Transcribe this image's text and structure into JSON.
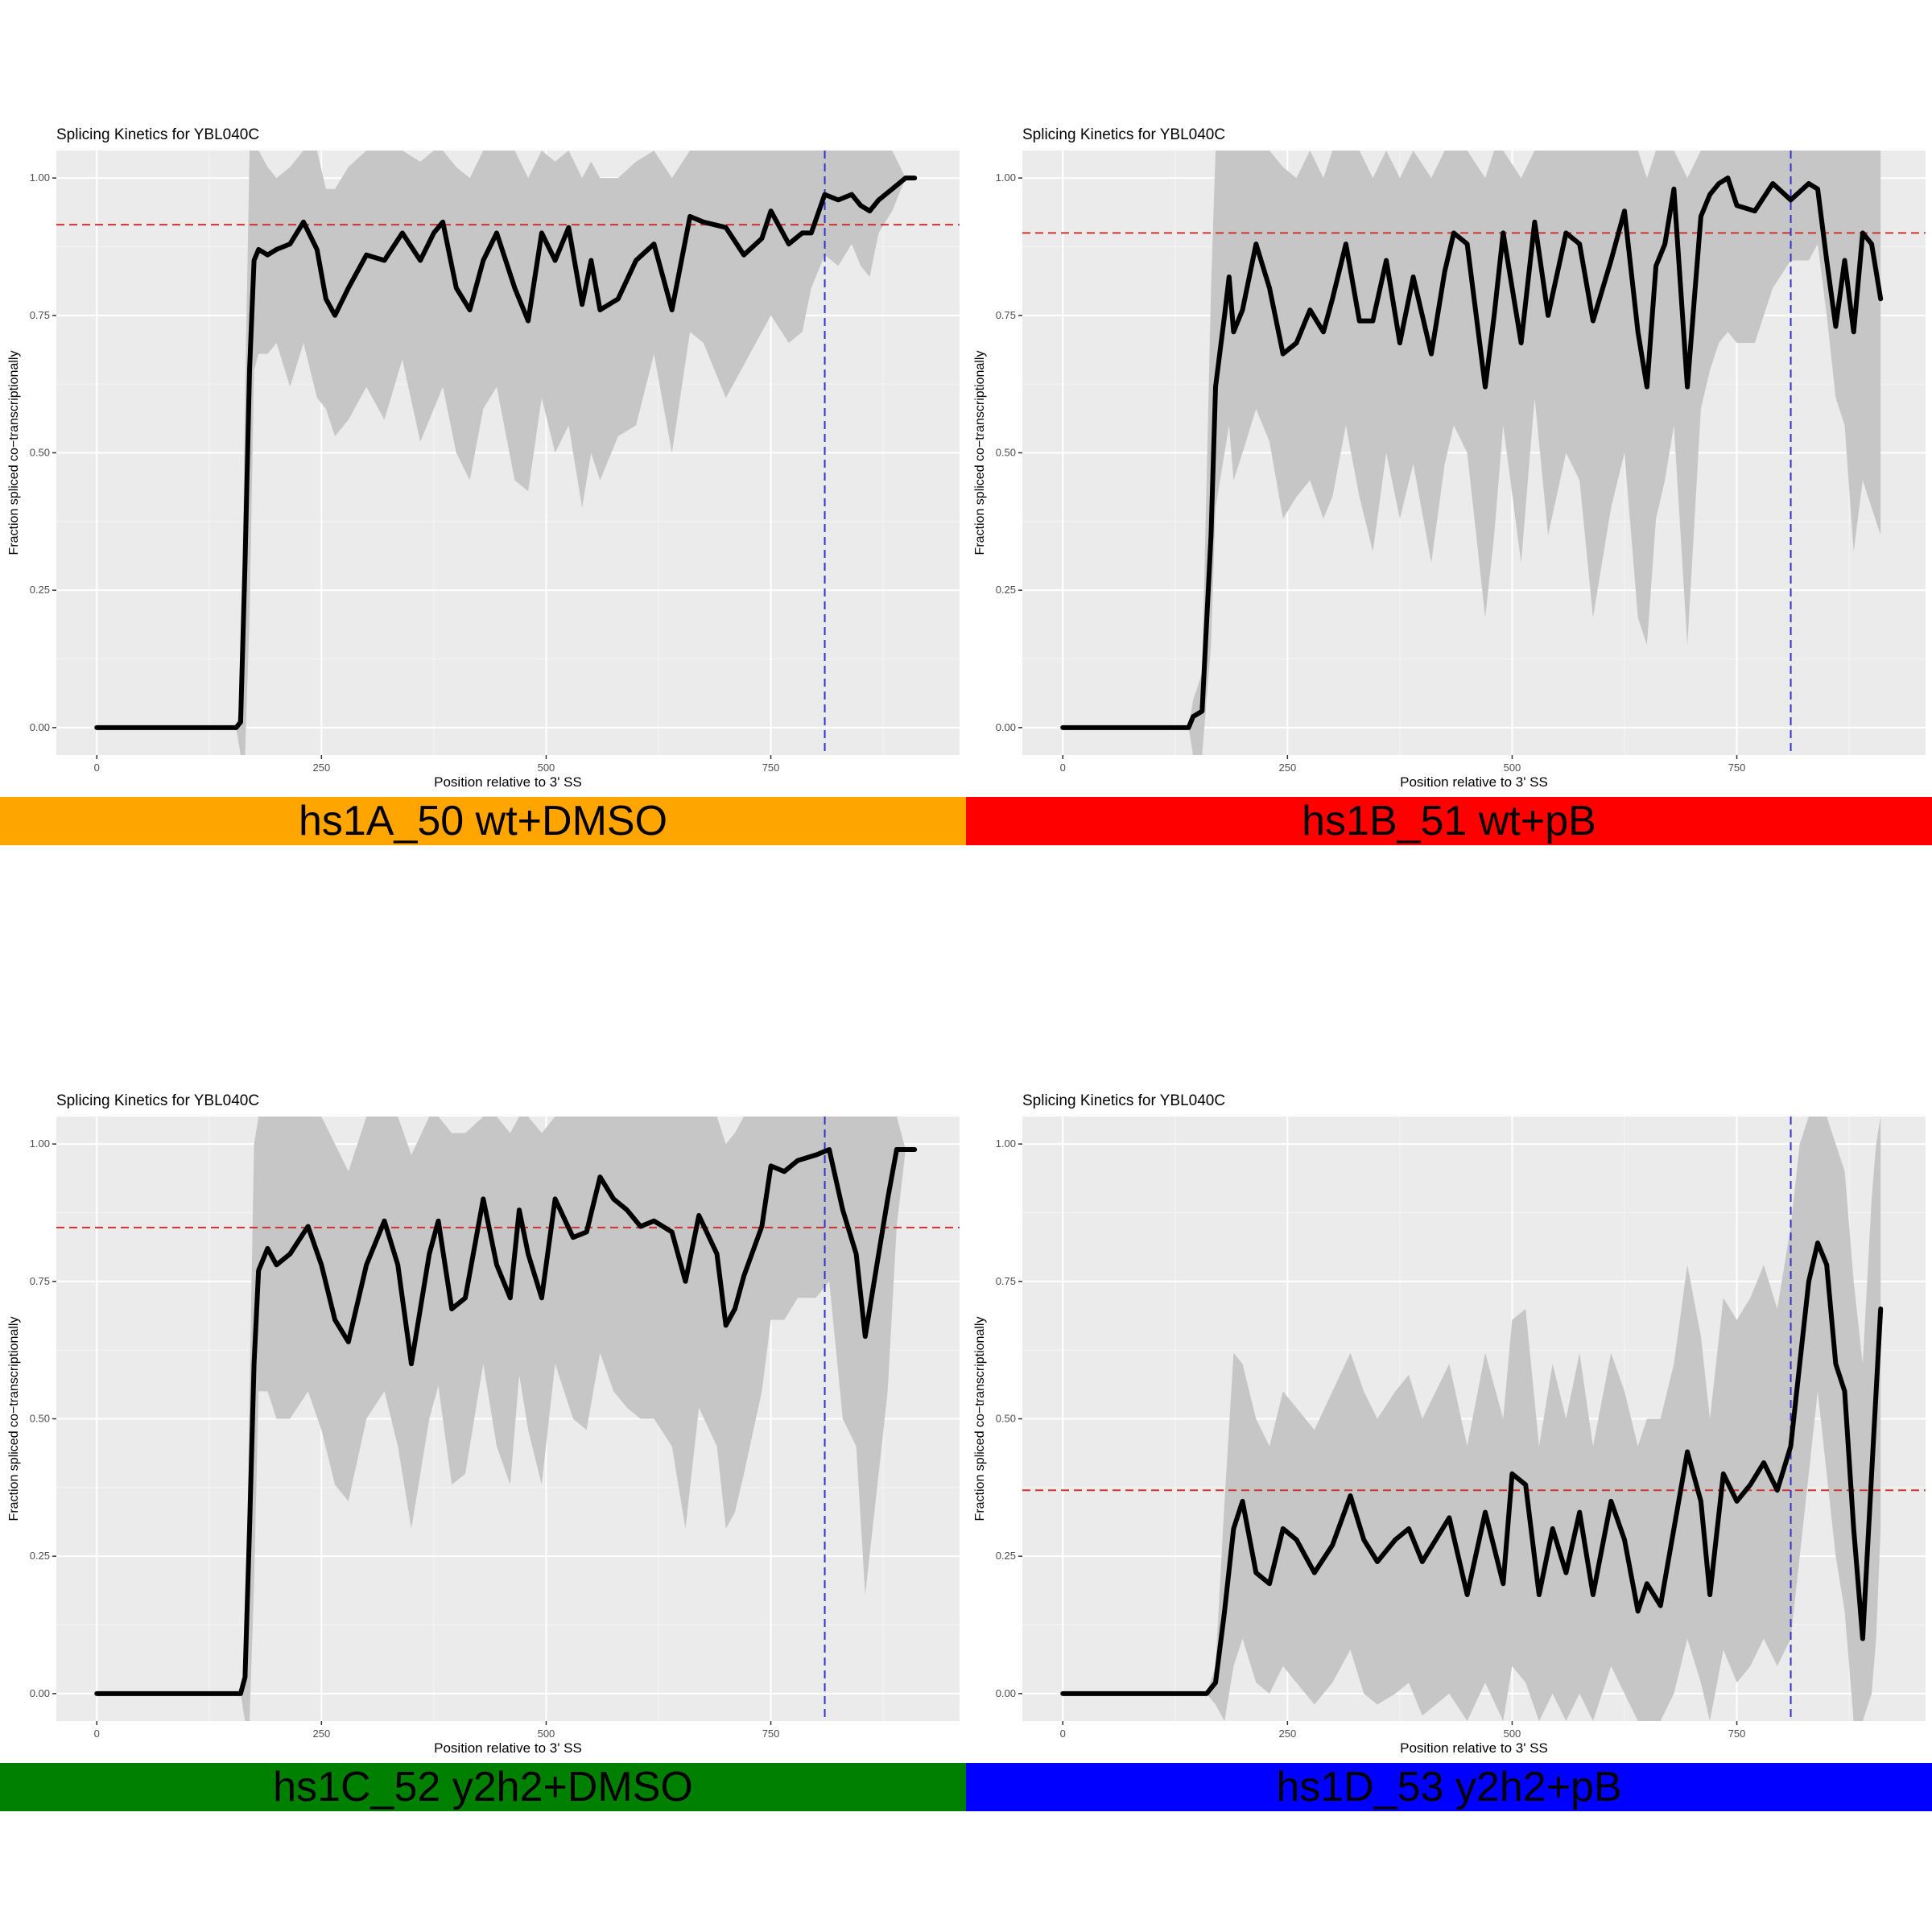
{
  "chart_data": [
    {
      "type": "line",
      "title": "Splicing Kinetics for YBL040C",
      "xlabel": "Position relative to 3' SS",
      "ylabel": "Fraction spliced co−transcriptionally",
      "xlim": [
        -45,
        960
      ],
      "ylim": [
        -0.05,
        1.05
      ],
      "x_ticks": [
        "0",
        "250",
        "500",
        "750"
      ],
      "y_ticks": [
        "0.00",
        "0.25",
        "0.50",
        "0.75",
        "1.00"
      ],
      "grid": true,
      "banner": {
        "label": "hs1A_50 wt+DMSO",
        "color": "#FFA500"
      },
      "hline_y": 0.915,
      "hline_color": "#CD3333",
      "vline_x": 810,
      "vline_color": "#3333CC",
      "line_color": "#000000",
      "band_color": "#C6C6C6",
      "x": [
        0,
        100,
        155,
        160,
        165,
        170,
        175,
        180,
        190,
        200,
        215,
        230,
        245,
        255,
        265,
        280,
        300,
        320,
        340,
        360,
        375,
        385,
        400,
        415,
        430,
        445,
        465,
        480,
        495,
        510,
        525,
        540,
        550,
        560,
        580,
        600,
        620,
        640,
        660,
        675,
        700,
        720,
        740,
        750,
        770,
        785,
        795,
        810,
        825,
        840,
        850,
        860,
        870,
        885,
        900,
        910
      ],
      "y": [
        0,
        0,
        0,
        0.01,
        0.3,
        0.65,
        0.85,
        0.87,
        0.86,
        0.87,
        0.88,
        0.92,
        0.87,
        0.78,
        0.75,
        0.8,
        0.86,
        0.85,
        0.9,
        0.85,
        0.9,
        0.92,
        0.8,
        0.76,
        0.85,
        0.9,
        0.8,
        0.74,
        0.9,
        0.85,
        0.91,
        0.77,
        0.85,
        0.76,
        0.78,
        0.85,
        0.88,
        0.76,
        0.93,
        0.92,
        0.91,
        0.86,
        0.89,
        0.94,
        0.88,
        0.9,
        0.9,
        0.97,
        0.96,
        0.97,
        0.95,
        0.94,
        0.96,
        0.98,
        1.0,
        1.0
      ],
      "lower": [
        0,
        0,
        0,
        -0.05,
        -0.05,
        0.2,
        0.65,
        0.68,
        0.68,
        0.7,
        0.62,
        0.7,
        0.6,
        0.58,
        0.53,
        0.56,
        0.62,
        0.56,
        0.67,
        0.52,
        0.58,
        0.62,
        0.5,
        0.45,
        0.58,
        0.62,
        0.45,
        0.43,
        0.6,
        0.5,
        0.55,
        0.4,
        0.5,
        0.45,
        0.53,
        0.55,
        0.68,
        0.5,
        0.72,
        0.7,
        0.6,
        0.66,
        0.72,
        0.75,
        0.7,
        0.72,
        0.8,
        0.86,
        0.84,
        0.88,
        0.84,
        0.82,
        0.9,
        0.94,
        1.0,
        1.0
      ],
      "upper": [
        0,
        0,
        0,
        0.05,
        0.6,
        1.05,
        1.05,
        1.05,
        1.02,
        1.0,
        1.02,
        1.05,
        1.05,
        0.98,
        0.98,
        1.02,
        1.05,
        1.05,
        1.05,
        1.03,
        1.05,
        1.05,
        1.02,
        1.0,
        1.05,
        1.05,
        1.05,
        1.0,
        1.05,
        1.03,
        1.05,
        1.0,
        1.03,
        1.0,
        1.0,
        1.03,
        1.05,
        1.0,
        1.05,
        1.05,
        1.05,
        1.05,
        1.05,
        1.05,
        1.05,
        1.05,
        1.05,
        1.05,
        1.05,
        1.05,
        1.05,
        1.05,
        1.05,
        1.05,
        1.0,
        1.0
      ]
    },
    {
      "type": "line",
      "title": "Splicing Kinetics for YBL040C",
      "xlabel": "Position relative to 3' SS",
      "ylabel": "Fraction spliced co−transcriptionally",
      "xlim": [
        -45,
        960
      ],
      "ylim": [
        -0.05,
        1.05
      ],
      "x_ticks": [
        "0",
        "250",
        "500",
        "750"
      ],
      "y_ticks": [
        "0.00",
        "0.25",
        "0.50",
        "0.75",
        "1.00"
      ],
      "grid": true,
      "banner": {
        "label": "hs1B_51 wt+pB",
        "color": "#FF0000"
      },
      "hline_y": 0.9,
      "hline_color": "#CD3333",
      "vline_x": 810,
      "vline_color": "#3333CC",
      "line_color": "#000000",
      "band_color": "#C6C6C6",
      "x": [
        0,
        100,
        140,
        145,
        155,
        165,
        170,
        180,
        185,
        190,
        200,
        215,
        230,
        245,
        260,
        275,
        290,
        300,
        315,
        330,
        345,
        360,
        375,
        390,
        410,
        425,
        435,
        450,
        470,
        480,
        490,
        510,
        525,
        540,
        560,
        575,
        590,
        610,
        625,
        640,
        650,
        660,
        670,
        680,
        695,
        710,
        720,
        730,
        740,
        750,
        770,
        790,
        810,
        830,
        840,
        850,
        860,
        870,
        880,
        890,
        900,
        910
      ],
      "y": [
        0,
        0,
        0,
        0.02,
        0.03,
        0.35,
        0.62,
        0.75,
        0.82,
        0.72,
        0.76,
        0.88,
        0.8,
        0.68,
        0.7,
        0.76,
        0.72,
        0.78,
        0.88,
        0.74,
        0.74,
        0.85,
        0.7,
        0.82,
        0.68,
        0.83,
        0.9,
        0.88,
        0.62,
        0.75,
        0.9,
        0.7,
        0.92,
        0.75,
        0.9,
        0.88,
        0.74,
        0.85,
        0.94,
        0.72,
        0.62,
        0.84,
        0.88,
        0.98,
        0.62,
        0.93,
        0.97,
        0.99,
        1.0,
        0.95,
        0.94,
        0.99,
        0.96,
        0.99,
        0.98,
        0.85,
        0.73,
        0.85,
        0.72,
        0.9,
        0.88,
        0.78
      ],
      "lower": [
        0,
        0,
        0,
        -0.05,
        -0.05,
        0.15,
        0.4,
        0.5,
        0.55,
        0.45,
        0.5,
        0.58,
        0.52,
        0.38,
        0.42,
        0.45,
        0.38,
        0.42,
        0.55,
        0.42,
        0.32,
        0.5,
        0.38,
        0.48,
        0.3,
        0.48,
        0.55,
        0.5,
        0.2,
        0.35,
        0.55,
        0.3,
        0.6,
        0.35,
        0.5,
        0.45,
        0.2,
        0.4,
        0.5,
        0.2,
        0.15,
        0.38,
        0.45,
        0.55,
        0.15,
        0.58,
        0.65,
        0.7,
        0.72,
        0.7,
        0.7,
        0.8,
        0.85,
        0.85,
        0.88,
        0.75,
        0.6,
        0.55,
        0.32,
        0.45,
        0.4,
        0.35
      ],
      "upper": [
        0,
        0,
        0,
        0.05,
        0.1,
        0.8,
        1.05,
        1.05,
        1.05,
        1.05,
        1.05,
        1.05,
        1.05,
        1.02,
        1.0,
        1.05,
        1.0,
        1.05,
        1.05,
        1.05,
        1.0,
        1.05,
        1.0,
        1.05,
        1.0,
        1.05,
        1.05,
        1.05,
        1.0,
        1.05,
        1.05,
        1.0,
        1.05,
        1.05,
        1.05,
        1.05,
        1.05,
        1.05,
        1.05,
        1.05,
        1.0,
        1.05,
        1.05,
        1.05,
        1.0,
        1.05,
        1.05,
        1.05,
        1.05,
        1.05,
        1.05,
        1.05,
        1.05,
        1.05,
        1.05,
        1.05,
        1.05,
        1.05,
        1.05,
        1.05,
        1.05,
        1.05
      ]
    },
    {
      "type": "line",
      "title": "Splicing Kinetics for YBL040C",
      "xlabel": "Position relative to 3' SS",
      "ylabel": "Fraction spliced co−transcriptionally",
      "xlim": [
        -45,
        960
      ],
      "ylim": [
        -0.05,
        1.05
      ],
      "x_ticks": [
        "0",
        "250",
        "500",
        "750"
      ],
      "y_ticks": [
        "0.00",
        "0.25",
        "0.50",
        "0.75",
        "1.00"
      ],
      "grid": true,
      "banner": {
        "label": "hs1C_52 y2h2+DMSO",
        "color": "#008000"
      },
      "hline_y": 0.848,
      "hline_color": "#CD3333",
      "vline_x": 810,
      "vline_color": "#3333CC",
      "line_color": "#000000",
      "band_color": "#C6C6C6",
      "x": [
        0,
        100,
        160,
        165,
        170,
        175,
        180,
        190,
        200,
        215,
        235,
        250,
        265,
        280,
        300,
        320,
        335,
        350,
        370,
        380,
        395,
        410,
        430,
        445,
        460,
        470,
        480,
        495,
        510,
        530,
        545,
        560,
        575,
        590,
        605,
        620,
        640,
        655,
        670,
        690,
        700,
        710,
        720,
        740,
        750,
        765,
        780,
        800,
        815,
        830,
        845,
        855,
        870,
        880,
        890,
        900,
        910
      ],
      "y": [
        0,
        0,
        0,
        0.03,
        0.3,
        0.6,
        0.77,
        0.81,
        0.78,
        0.8,
        0.85,
        0.78,
        0.68,
        0.64,
        0.78,
        0.86,
        0.78,
        0.6,
        0.8,
        0.86,
        0.7,
        0.72,
        0.9,
        0.78,
        0.72,
        0.88,
        0.8,
        0.72,
        0.9,
        0.83,
        0.84,
        0.94,
        0.9,
        0.88,
        0.85,
        0.86,
        0.84,
        0.75,
        0.87,
        0.8,
        0.67,
        0.7,
        0.76,
        0.85,
        0.96,
        0.95,
        0.97,
        0.98,
        0.99,
        0.88,
        0.8,
        0.65,
        0.8,
        0.9,
        0.99,
        0.99,
        0.99
      ],
      "lower": [
        0,
        0,
        0,
        -0.05,
        -0.05,
        0.2,
        0.55,
        0.55,
        0.5,
        0.5,
        0.55,
        0.48,
        0.38,
        0.35,
        0.5,
        0.55,
        0.45,
        0.3,
        0.5,
        0.56,
        0.38,
        0.4,
        0.6,
        0.45,
        0.38,
        0.58,
        0.48,
        0.38,
        0.6,
        0.5,
        0.48,
        0.62,
        0.55,
        0.52,
        0.5,
        0.5,
        0.45,
        0.3,
        0.52,
        0.45,
        0.3,
        0.33,
        0.4,
        0.55,
        0.68,
        0.68,
        0.72,
        0.72,
        0.75,
        0.5,
        0.45,
        0.18,
        0.4,
        0.55,
        0.85,
        0.99,
        0.99
      ],
      "upper": [
        0,
        0,
        0,
        0.05,
        0.55,
        1.0,
        1.05,
        1.05,
        1.05,
        1.05,
        1.05,
        1.05,
        1.0,
        0.95,
        1.05,
        1.05,
        1.05,
        0.98,
        1.05,
        1.05,
        1.02,
        1.02,
        1.05,
        1.05,
        1.02,
        1.05,
        1.05,
        1.02,
        1.05,
        1.05,
        1.05,
        1.05,
        1.05,
        1.05,
        1.05,
        1.05,
        1.05,
        1.05,
        1.05,
        1.05,
        1.0,
        1.02,
        1.05,
        1.05,
        1.05,
        1.05,
        1.05,
        1.05,
        1.05,
        1.05,
        1.05,
        1.05,
        1.05,
        1.05,
        1.05,
        0.99,
        0.99
      ]
    },
    {
      "type": "line",
      "title": "Splicing Kinetics for YBL040C",
      "xlabel": "Position relative to 3' SS",
      "ylabel": "Fraction spliced co−transcriptionally",
      "xlim": [
        -45,
        960
      ],
      "ylim": [
        -0.05,
        1.05
      ],
      "x_ticks": [
        "0",
        "250",
        "500",
        "750"
      ],
      "y_ticks": [
        "0.00",
        "0.25",
        "0.50",
        "0.75",
        "1.00"
      ],
      "grid": true,
      "banner": {
        "label": "hs1D_53 y2h2+pB",
        "color": "#0000FF"
      },
      "hline_y": 0.37,
      "hline_color": "#CD3333",
      "vline_x": 810,
      "vline_color": "#3333CC",
      "line_color": "#000000",
      "band_color": "#C6C6C6",
      "x": [
        0,
        100,
        160,
        170,
        180,
        190,
        200,
        215,
        230,
        245,
        260,
        280,
        300,
        320,
        335,
        350,
        370,
        385,
        400,
        415,
        430,
        450,
        470,
        490,
        500,
        515,
        530,
        545,
        560,
        575,
        590,
        610,
        625,
        640,
        650,
        665,
        680,
        695,
        710,
        720,
        735,
        750,
        765,
        780,
        795,
        810,
        820,
        830,
        840,
        850,
        860,
        870,
        880,
        890,
        900,
        905,
        910
      ],
      "y": [
        0,
        0,
        0,
        0.02,
        0.15,
        0.3,
        0.35,
        0.22,
        0.2,
        0.3,
        0.28,
        0.22,
        0.27,
        0.36,
        0.28,
        0.24,
        0.28,
        0.3,
        0.24,
        0.28,
        0.32,
        0.18,
        0.33,
        0.2,
        0.4,
        0.38,
        0.18,
        0.3,
        0.22,
        0.33,
        0.18,
        0.35,
        0.28,
        0.15,
        0.2,
        0.16,
        0.3,
        0.44,
        0.35,
        0.18,
        0.4,
        0.35,
        0.38,
        0.42,
        0.37,
        0.45,
        0.6,
        0.75,
        0.82,
        0.78,
        0.6,
        0.55,
        0.3,
        0.1,
        0.4,
        0.55,
        0.7
      ],
      "lower": [
        0,
        0,
        0,
        -0.02,
        -0.05,
        0.05,
        0.1,
        0.02,
        0.0,
        0.05,
        0.02,
        -0.02,
        0.02,
        0.08,
        0.0,
        -0.02,
        0.0,
        0.02,
        -0.04,
        -0.02,
        0.0,
        -0.05,
        0.02,
        -0.05,
        0.05,
        0.02,
        -0.05,
        0.0,
        -0.05,
        0.0,
        -0.05,
        0.05,
        0.0,
        -0.05,
        -0.05,
        -0.05,
        0.0,
        0.1,
        0.02,
        -0.05,
        0.08,
        0.02,
        0.05,
        0.1,
        0.05,
        0.1,
        0.25,
        0.4,
        0.55,
        0.4,
        0.25,
        0.15,
        -0.05,
        -0.05,
        0.0,
        0.1,
        0.3
      ],
      "upper": [
        0,
        0,
        0,
        0.05,
        0.35,
        0.62,
        0.6,
        0.5,
        0.45,
        0.55,
        0.52,
        0.48,
        0.55,
        0.62,
        0.55,
        0.5,
        0.55,
        0.58,
        0.5,
        0.55,
        0.6,
        0.45,
        0.62,
        0.5,
        0.68,
        0.7,
        0.45,
        0.6,
        0.5,
        0.62,
        0.45,
        0.62,
        0.55,
        0.45,
        0.5,
        0.5,
        0.6,
        0.78,
        0.65,
        0.5,
        0.72,
        0.68,
        0.72,
        0.78,
        0.7,
        0.85,
        1.0,
        1.05,
        1.05,
        1.05,
        1.0,
        0.95,
        0.75,
        0.6,
        0.9,
        1.0,
        1.05
      ]
    }
  ]
}
